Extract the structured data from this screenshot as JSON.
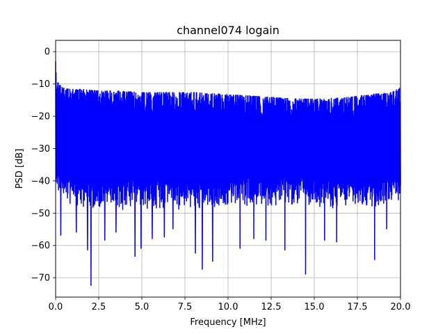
{
  "chart_data": {
    "type": "line",
    "title": "channel074 logain",
    "xlabel": "Frequency [MHz]",
    "ylabel": "PSD [dB]",
    "xlim": [
      0,
      20
    ],
    "ylim": [
      -76,
      3.5
    ],
    "xticks": [
      0.0,
      2.5,
      5.0,
      7.5,
      10.0,
      12.5,
      15.0,
      17.5,
      20.0
    ],
    "xtick_labels": [
      "0.0",
      "2.5",
      "5.0",
      "7.5",
      "10.0",
      "12.5",
      "15.0",
      "17.5",
      "20.0"
    ],
    "yticks": [
      0,
      -10,
      -20,
      -30,
      -40,
      -50,
      -60,
      -70
    ],
    "ytick_labels": [
      "0",
      "−10",
      "−20",
      "−30",
      "−40",
      "−50",
      "−60",
      "−70"
    ],
    "grid": true,
    "line_color": "#0000ff",
    "series": [
      {
        "envelope_upper": {
          "x": [
            0.0,
            0.05,
            0.1,
            0.2,
            0.4,
            0.8,
            1.5,
            2.5,
            3.5,
            5.0,
            6.5,
            8.0,
            9.5,
            11.0,
            12.5,
            14.0,
            15.5,
            17.0,
            18.5,
            19.5,
            20.0
          ],
          "y": [
            -3,
            -6,
            -9,
            -10,
            -11,
            -11.5,
            -11.5,
            -12,
            -12,
            -12.5,
            -12.5,
            -12.5,
            -13,
            -13.5,
            -14,
            -14.5,
            -14.5,
            -14,
            -13,
            -12.5,
            -11
          ]
        },
        "envelope_lower": {
          "x": [
            0.0,
            0.5,
            1.0,
            2.0,
            3.0,
            4.0,
            5.0,
            6.0,
            7.0,
            8.0,
            9.0,
            10.0,
            11.0,
            12.0,
            13.0,
            14.0,
            15.0,
            16.0,
            17.0,
            18.0,
            19.0,
            20.0
          ],
          "y": [
            -42,
            -45,
            -47,
            -48,
            -48,
            -48,
            -48,
            -48,
            -48,
            -48,
            -48,
            -48,
            -47,
            -47,
            -47,
            -47,
            -47,
            -48,
            -48,
            -48,
            -47,
            -45
          ]
        },
        "dips": [
          {
            "x": 0.3,
            "y": -57
          },
          {
            "x": 1.2,
            "y": -56
          },
          {
            "x": 1.85,
            "y": -61.5
          },
          {
            "x": 2.05,
            "y": -72.5
          },
          {
            "x": 2.85,
            "y": -58.5
          },
          {
            "x": 3.5,
            "y": -56
          },
          {
            "x": 4.6,
            "y": -63.5
          },
          {
            "x": 4.95,
            "y": -61
          },
          {
            "x": 5.6,
            "y": -58
          },
          {
            "x": 6.3,
            "y": -57.5
          },
          {
            "x": 6.8,
            "y": -55
          },
          {
            "x": 8.1,
            "y": -62.5
          },
          {
            "x": 8.5,
            "y": -67.5
          },
          {
            "x": 9.1,
            "y": -65
          },
          {
            "x": 10.7,
            "y": -61
          },
          {
            "x": 11.5,
            "y": -58
          },
          {
            "x": 12.2,
            "y": -58.5
          },
          {
            "x": 13.3,
            "y": -61.5
          },
          {
            "x": 14.5,
            "y": -69
          },
          {
            "x": 15.6,
            "y": -58.5
          },
          {
            "x": 16.3,
            "y": -59
          },
          {
            "x": 18.5,
            "y": -64.5
          },
          {
            "x": 19.2,
            "y": -55
          }
        ]
      }
    ]
  }
}
